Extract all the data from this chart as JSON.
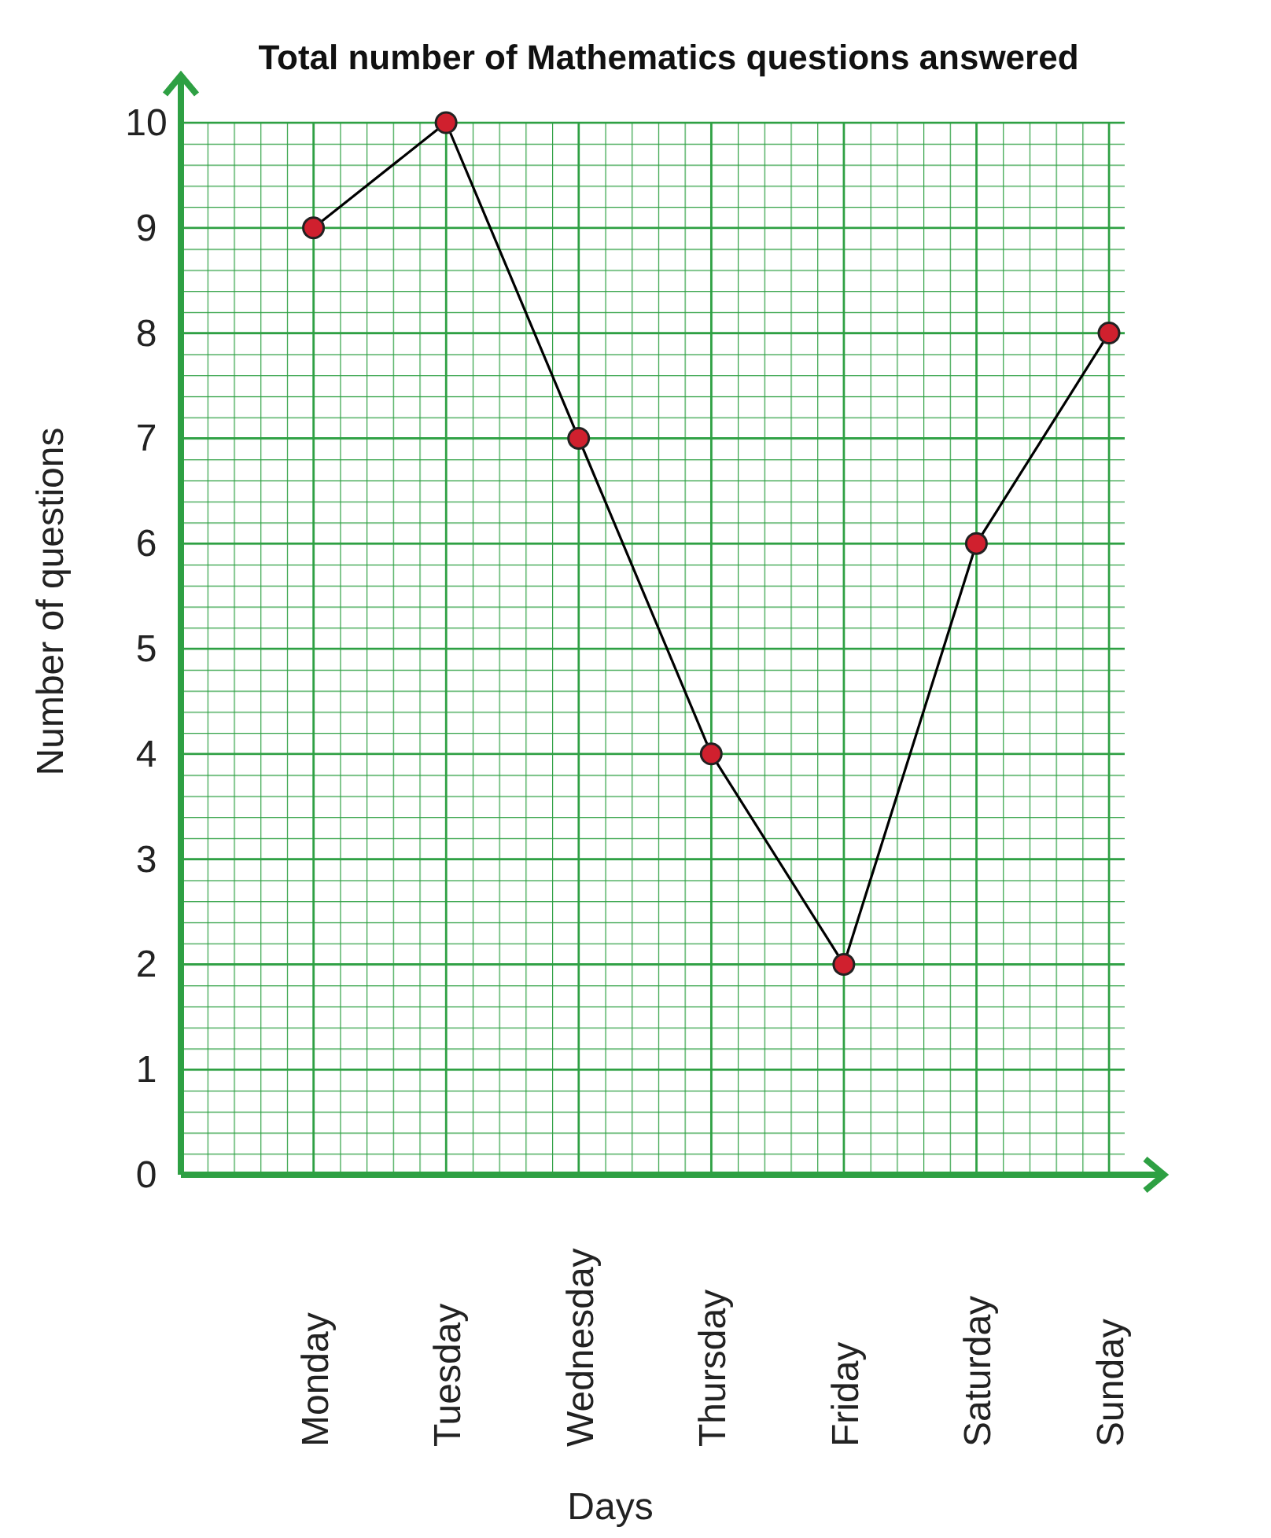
{
  "chart_data": {
    "type": "line",
    "title": "Total number of Mathematics questions answered",
    "xlabel": "Days",
    "ylabel": "Number of questions",
    "categories": [
      "Monday",
      "Tuesday",
      "Wednesday",
      "Thursday",
      "Friday",
      "Saturday",
      "Sunday"
    ],
    "series": [
      {
        "color": "#000000",
        "values": [
          9,
          10,
          7,
          4,
          2,
          6,
          8
        ]
      }
    ],
    "ylim": [
      0,
      10
    ],
    "yticks": [
      0,
      1,
      2,
      3,
      4,
      5,
      6,
      7,
      8,
      9,
      10
    ],
    "grid": true,
    "marker": "circle",
    "line_style": "solid"
  }
}
